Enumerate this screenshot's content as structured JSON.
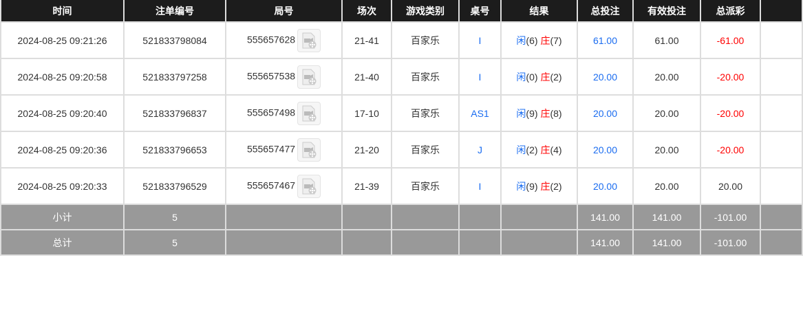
{
  "headers": [
    "时间",
    "注单编号",
    "局号",
    "场次",
    "游戏类别",
    "桌号",
    "结果",
    "总投注",
    "有效投注",
    "总派彩"
  ],
  "rows": [
    {
      "time": "2024-08-25 09:21:26",
      "bet_id": "521833798084",
      "round": "555657628",
      "session": "21-41",
      "game": "百家乐",
      "table": "I",
      "player": "闲",
      "player_val": "(6)",
      "banker": "庄",
      "banker_val": "(7)",
      "total": "61.00",
      "valid": "61.00",
      "payout": "-61.00"
    },
    {
      "time": "2024-08-25 09:20:58",
      "bet_id": "521833797258",
      "round": "555657538",
      "session": "21-40",
      "game": "百家乐",
      "table": "I",
      "player": "闲",
      "player_val": "(0)",
      "banker": "庄",
      "banker_val": "(2)",
      "total": "20.00",
      "valid": "20.00",
      "payout": "-20.00"
    },
    {
      "time": "2024-08-25 09:20:40",
      "bet_id": "521833796837",
      "round": "555657498",
      "session": "17-10",
      "game": "百家乐",
      "table": "AS1",
      "player": "闲",
      "player_val": "(9)",
      "banker": "庄",
      "banker_val": "(8)",
      "total": "20.00",
      "valid": "20.00",
      "payout": "-20.00"
    },
    {
      "time": "2024-08-25 09:20:36",
      "bet_id": "521833796653",
      "round": "555657477",
      "session": "21-20",
      "game": "百家乐",
      "table": "J",
      "player": "闲",
      "player_val": "(2)",
      "banker": "庄",
      "banker_val": "(4)",
      "total": "20.00",
      "valid": "20.00",
      "payout": "-20.00"
    },
    {
      "time": "2024-08-25 09:20:33",
      "bet_id": "521833796529",
      "round": "555657467",
      "session": "21-39",
      "game": "百家乐",
      "table": "I",
      "player": "闲",
      "player_val": "(9)",
      "banker": "庄",
      "banker_val": "(2)",
      "total": "20.00",
      "valid": "20.00",
      "payout": "20.00"
    }
  ],
  "summary": [
    {
      "label": "小计",
      "count": "5",
      "total": "141.00",
      "valid": "141.00",
      "payout": "-101.00"
    },
    {
      "label": "总计",
      "count": "5",
      "total": "141.00",
      "valid": "141.00",
      "payout": "-101.00"
    }
  ],
  "colors": {
    "blue": "#1a6cf0",
    "red": "#ff0000",
    "header_bg": "#1c1c1c",
    "summary_bg": "#999999"
  },
  "icons": {
    "replay": "video-replay-icon"
  }
}
